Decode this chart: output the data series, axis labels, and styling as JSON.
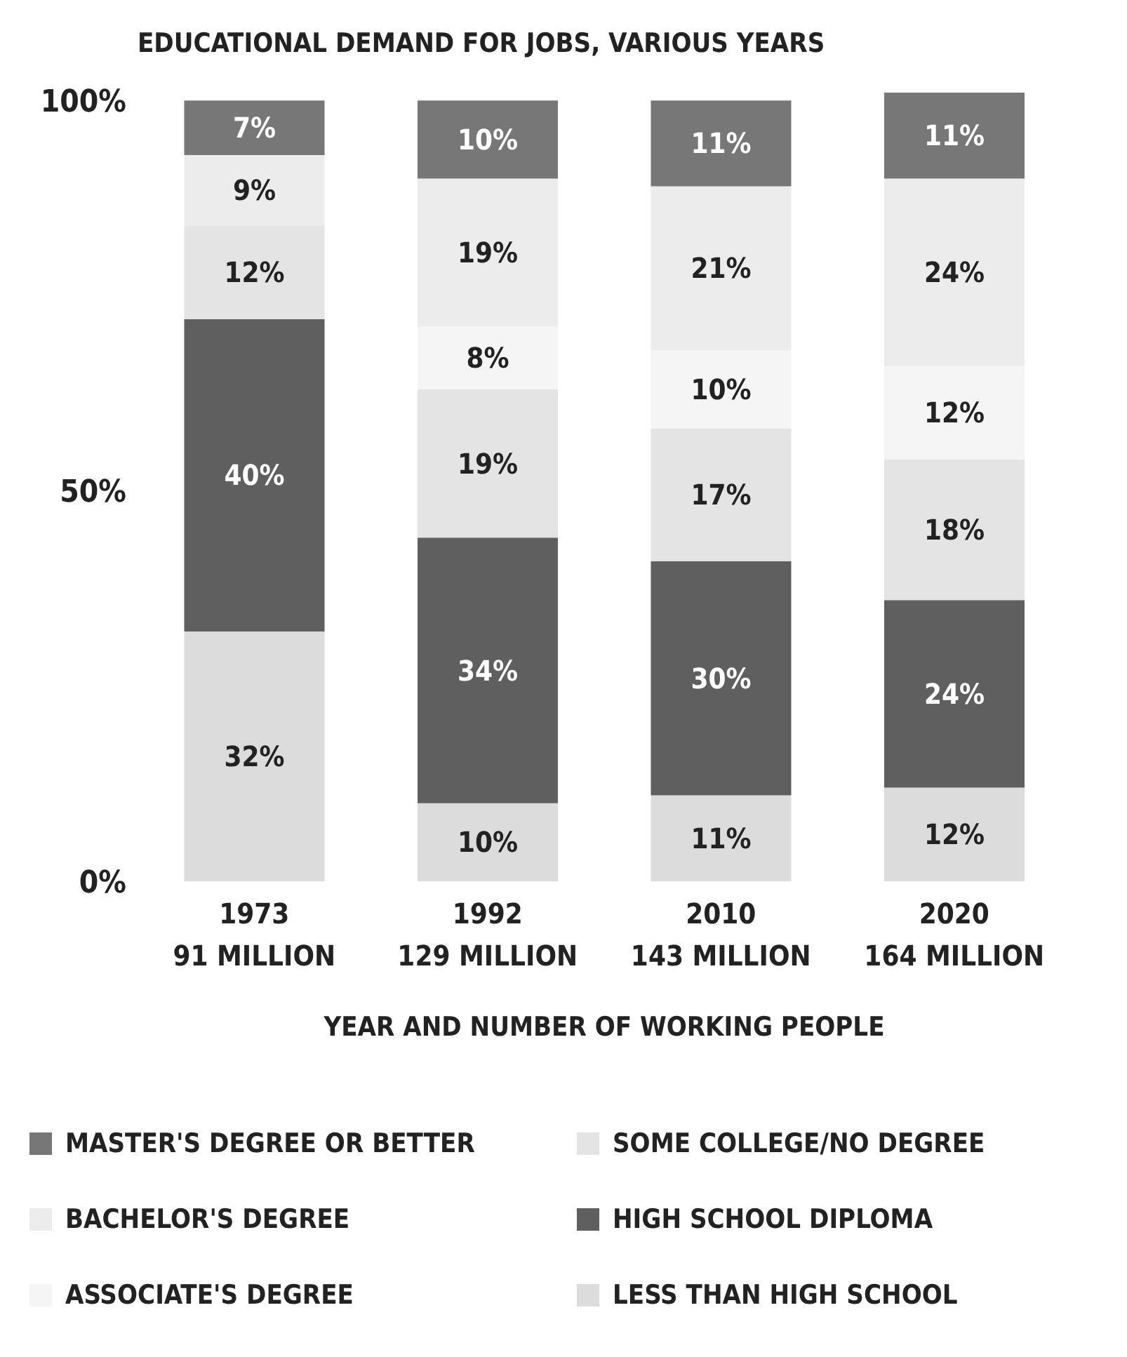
{
  "chart_data": {
    "type": "bar",
    "stacked": true,
    "title": "EDUCATIONAL DEMAND FOR JOBS, VARIOUS YEARS",
    "xlabel": "YEAR AND NUMBER OF WORKING PEOPLE",
    "categories": [
      "1973\n91 MILLION",
      "1992\n129 MILLION",
      "2010\n143 MILLION",
      "2020\n164 MILLION"
    ],
    "ylim": [
      0,
      101
    ],
    "yticks": [
      {
        "value": 0,
        "label": "0%"
      },
      {
        "value": 50,
        "label": "50%"
      },
      {
        "value": 100,
        "label": "100%"
      }
    ],
    "legend": "bottom",
    "series": [
      {
        "name": "LESS THAN HIGH SCHOOL",
        "color": "#dcdcdc",
        "values": [
          32,
          10,
          11,
          12
        ],
        "value_labels": [
          "32%",
          "10%",
          "11%",
          "12%"
        ]
      },
      {
        "name": "HIGH SCHOOL DIPLOMA",
        "color": "#5f5f5f",
        "values": [
          40,
          34,
          30,
          24
        ],
        "value_labels": [
          "40%",
          "34%",
          "30%",
          "24%"
        ]
      },
      {
        "name": "SOME COLLEGE/NO DEGREE",
        "color": "#e4e4e4",
        "values": [
          12,
          19,
          17,
          18
        ],
        "value_labels": [
          "12%",
          "19%",
          "17%",
          "18%"
        ]
      },
      {
        "name": "ASSOCIATE'S DEGREE",
        "color": "#f5f5f5",
        "values": [
          null,
          8,
          10,
          12
        ],
        "value_labels": [
          null,
          "8%",
          "10%",
          "12%"
        ]
      },
      {
        "name": "BACHELOR'S DEGREE",
        "color": "#ececec",
        "values": [
          9,
          19,
          21,
          24
        ],
        "value_labels": [
          "9%",
          "19%",
          "21%",
          "24%"
        ]
      },
      {
        "name": "MASTER'S DEGREE OR BETTER",
        "color": "#777777",
        "values": [
          7,
          10,
          11,
          11
        ],
        "value_labels": [
          "7%",
          "10%",
          "11%",
          "11%"
        ]
      }
    ]
  }
}
